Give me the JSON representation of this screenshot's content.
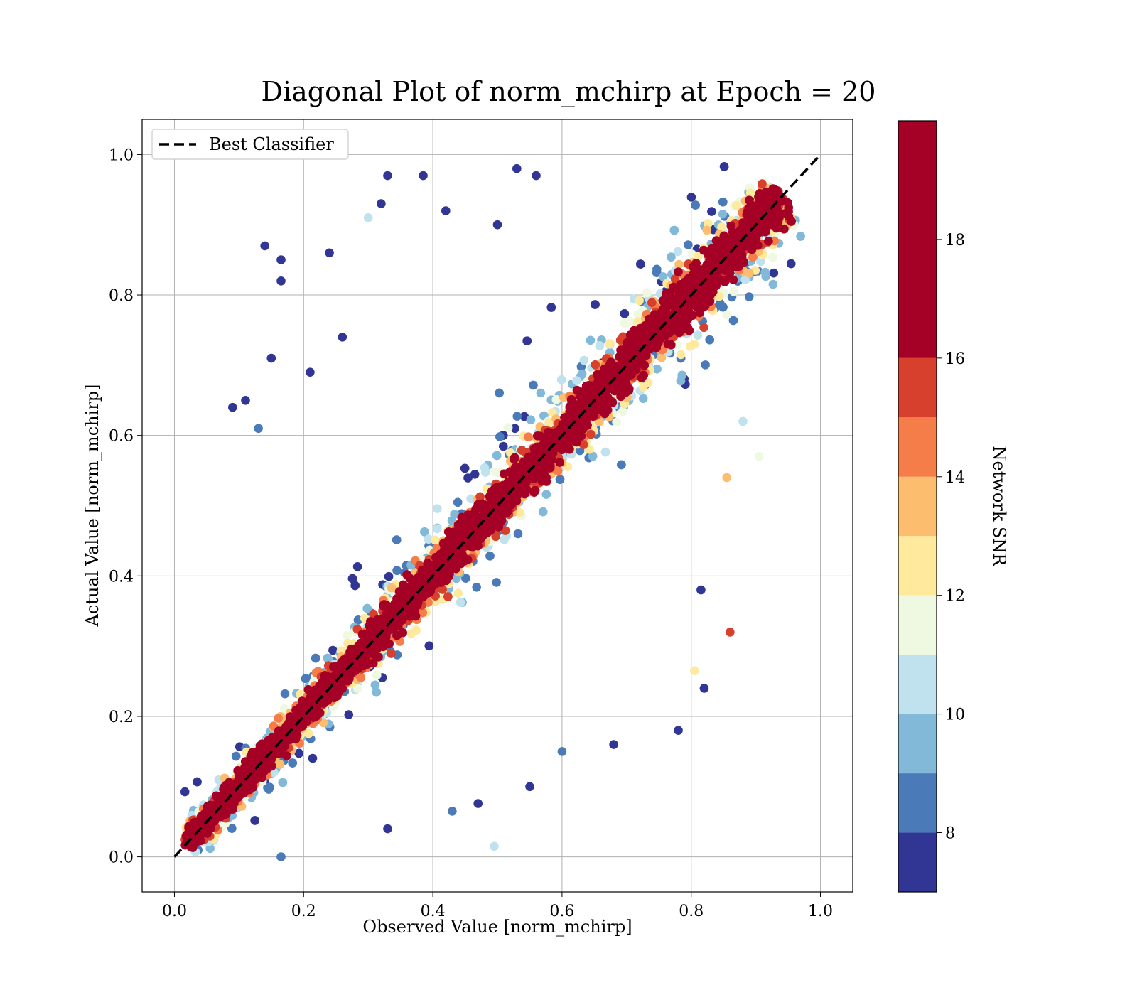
{
  "chart_data": {
    "type": "scatter",
    "title": "Diagonal Plot of norm_mchirp at Epoch = 20",
    "xlabel": "Observed Value [norm_mchirp]",
    "ylabel": "Actual Value [norm_mchirp]",
    "xlim": [
      -0.05,
      1.05
    ],
    "ylim": [
      -0.05,
      1.05
    ],
    "x_ticks": [
      "0.0",
      "0.2",
      "0.4",
      "0.6",
      "0.8",
      "1.0"
    ],
    "y_ticks": [
      "0.0",
      "0.2",
      "0.4",
      "0.6",
      "0.8",
      "1.0"
    ],
    "grid": true,
    "legend": {
      "placement": "top-left",
      "entries": [
        "Best Classifier"
      ]
    },
    "reference_line": {
      "name": "Best Classifier",
      "style": "dashed",
      "color": "#000000",
      "x": [
        0,
        1
      ],
      "y": [
        0,
        1
      ]
    },
    "colorbar": {
      "label": "Network SNR",
      "range": [
        7,
        20
      ],
      "ticks": [
        "8",
        "10",
        "12",
        "14",
        "16",
        "18"
      ],
      "bins": [
        {
          "from": 7,
          "to": 8,
          "color": "#313695"
        },
        {
          "from": 8,
          "to": 9,
          "color": "#4a7ab7"
        },
        {
          "from": 9,
          "to": 10,
          "color": "#82b9d8"
        },
        {
          "from": 10,
          "to": 11,
          "color": "#c0e2ee"
        },
        {
          "from": 11,
          "to": 12,
          "color": "#eff8e0"
        },
        {
          "from": 12,
          "to": 13,
          "color": "#fee99d"
        },
        {
          "from": 13,
          "to": 14,
          "color": "#fdbd6f"
        },
        {
          "from": 14,
          "to": 15,
          "color": "#f57d4a"
        },
        {
          "from": 15,
          "to": 16,
          "color": "#d7402c"
        },
        {
          "from": 16,
          "to": 20,
          "color": "#a50026"
        }
      ]
    },
    "sample_points": [
      {
        "x": 0.09,
        "y": 0.64,
        "snr": 7.5
      },
      {
        "x": 0.11,
        "y": 0.65,
        "snr": 7.5
      },
      {
        "x": 0.15,
        "y": 0.71,
        "snr": 7.5
      },
      {
        "x": 0.14,
        "y": 0.87,
        "snr": 7.5
      },
      {
        "x": 0.165,
        "y": 0.85,
        "snr": 7.5
      },
      {
        "x": 0.165,
        "y": 0.82,
        "snr": 7.5
      },
      {
        "x": 0.33,
        "y": 0.97,
        "snr": 7.5
      },
      {
        "x": 0.385,
        "y": 0.97,
        "snr": 7.5
      },
      {
        "x": 0.53,
        "y": 0.98,
        "snr": 7.5
      },
      {
        "x": 0.56,
        "y": 0.97,
        "snr": 7.5
      },
      {
        "x": 0.32,
        "y": 0.93,
        "snr": 7.5
      },
      {
        "x": 0.42,
        "y": 0.92,
        "snr": 7.5
      },
      {
        "x": 0.5,
        "y": 0.9,
        "snr": 7.5
      },
      {
        "x": 0.3,
        "y": 0.91,
        "snr": 10.5
      },
      {
        "x": 0.13,
        "y": 0.61,
        "snr": 8.5
      },
      {
        "x": 0.495,
        "y": 0.015,
        "snr": 10.5
      },
      {
        "x": 0.165,
        "y": 0.0,
        "snr": 8.5
      },
      {
        "x": 0.47,
        "y": 0.076,
        "snr": 7.5
      },
      {
        "x": 0.33,
        "y": 0.04,
        "snr": 7.5
      },
      {
        "x": 0.43,
        "y": 0.065,
        "snr": 8.5
      },
      {
        "x": 0.86,
        "y": 0.32,
        "snr": 15.5
      },
      {
        "x": 0.82,
        "y": 0.24,
        "snr": 7.5
      },
      {
        "x": 0.815,
        "y": 0.38,
        "snr": 7.5
      },
      {
        "x": 0.905,
        "y": 0.57,
        "snr": 11.5
      },
      {
        "x": 0.88,
        "y": 0.62,
        "snr": 10.5
      },
      {
        "x": 0.855,
        "y": 0.54,
        "snr": 13.5
      },
      {
        "x": 0.805,
        "y": 0.265,
        "snr": 12.5
      },
      {
        "x": 0.78,
        "y": 0.18,
        "snr": 7.5
      },
      {
        "x": 0.68,
        "y": 0.16,
        "snr": 7.5
      },
      {
        "x": 0.6,
        "y": 0.15,
        "snr": 8.5
      },
      {
        "x": 0.55,
        "y": 0.1,
        "snr": 7.5
      },
      {
        "x": 0.21,
        "y": 0.69,
        "snr": 7.5
      },
      {
        "x": 0.26,
        "y": 0.74,
        "snr": 7.5
      },
      {
        "x": 0.24,
        "y": 0.86,
        "snr": 7.5
      }
    ]
  }
}
